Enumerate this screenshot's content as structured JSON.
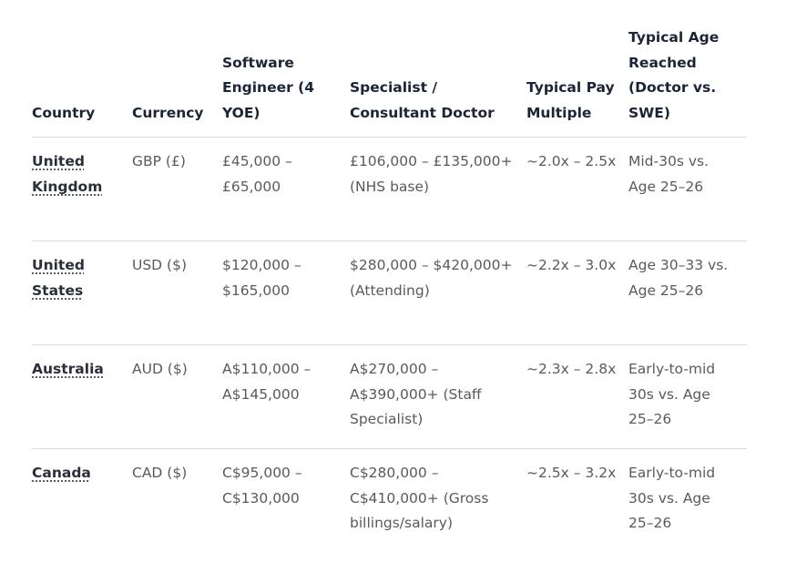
{
  "table": {
    "header": [
      "Country",
      "Currency",
      "Software Engineer (4 YOE)",
      "Specialist / Consultant Doctor",
      "Typical Pay Multiple",
      "Typical Age Reached (Doctor vs. SWE)"
    ],
    "rows": [
      [
        "United Kingdom",
        "GBP (£)",
        "£45,000 – £65,000",
        "£106,000 – £135,000+ (NHS base)",
        "~2.0x – 2.5x",
        "Mid-30s vs. Age 25–26"
      ],
      [
        "United States",
        "USD ($)",
        "$120,000 – $165,000",
        "$280,000 – $420,000+ (Attending)",
        "~2.2x – 3.0x",
        "Age 30–33 vs. Age 25–26"
      ],
      [
        "Australia",
        "AUD ($)",
        "A$110,000 – A$145,000",
        "A$270,000 – A$390,000+ (Staff Specialist)",
        "~2.3x – 2.8x",
        "Early-to-mid 30s vs. Age 25–26"
      ],
      [
        "Canada",
        "CAD ($)",
        "C$95,000 – C$130,000",
        "C$280,000 – C$410,000+ (Gross billings/salary)",
        "~2.5x – 3.2x",
        "Early-to-mid 30s vs. Age 25–26"
      ]
    ]
  }
}
